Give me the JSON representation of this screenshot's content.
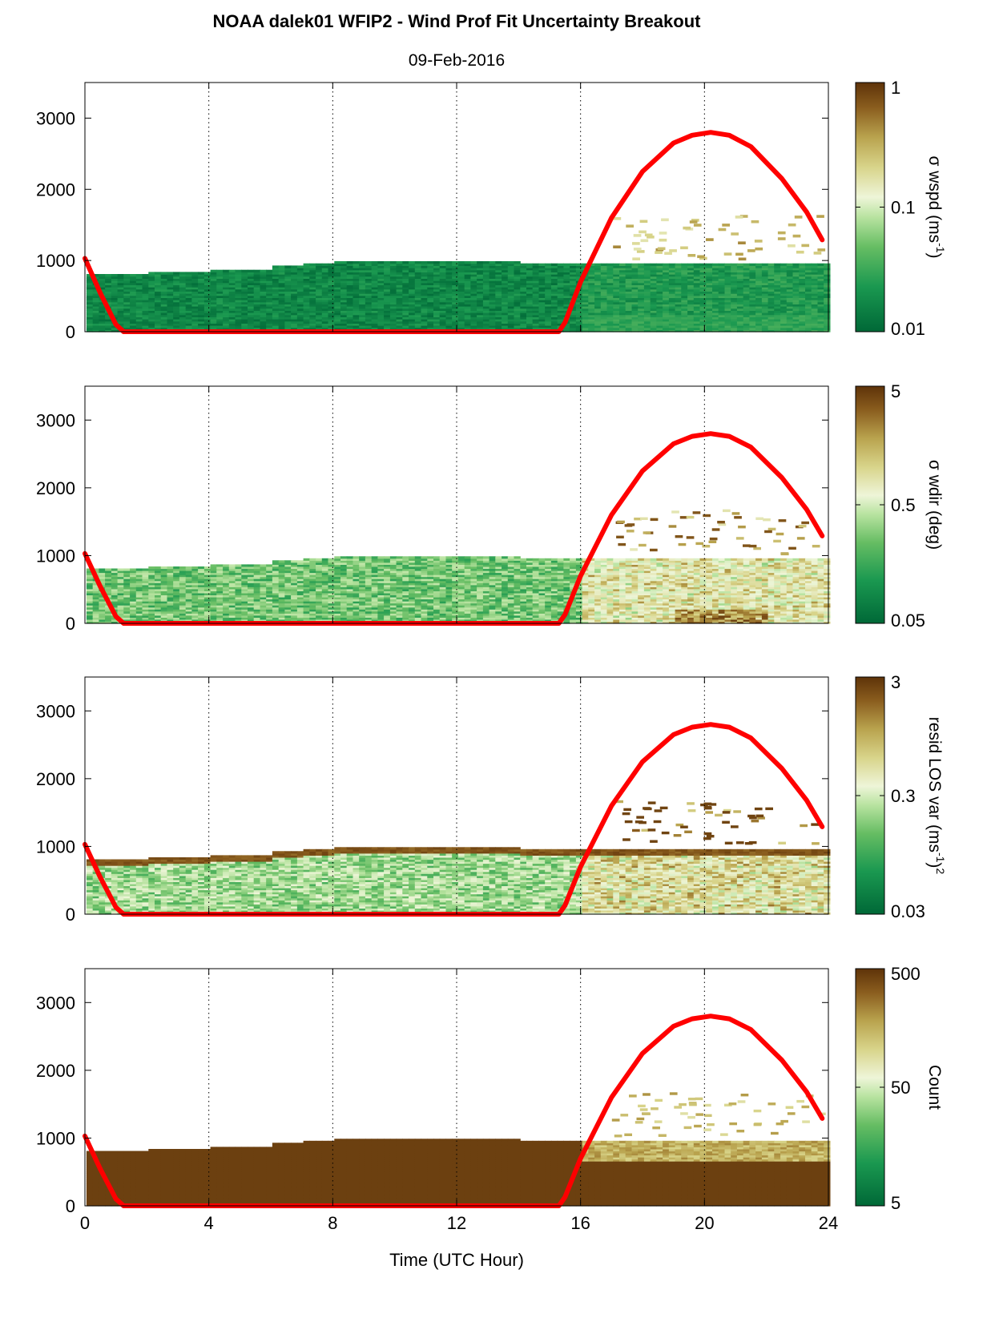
{
  "figure": {
    "title": "NOAA dalek01 WFIP2 - Wind Prof Fit Uncertainty Breakout",
    "subtitle": "09-Feb-2016"
  },
  "chart_data": [
    {
      "type": "heatmap",
      "x_ticks": [
        "0",
        "4",
        "8",
        "12",
        "16",
        "20",
        "24"
      ],
      "y_ticks": [
        "0",
        "1000",
        "2000",
        "3000"
      ],
      "xlim": [
        0,
        24
      ],
      "ylim": [
        0,
        3500
      ],
      "grid": "vertical dotted",
      "colorbar": {
        "label": "σ wspd (ms",
        "sup": "-1",
        "tail": ")",
        "tail_sup": "",
        "ticks": [
          "1",
          "0.1",
          "0.01"
        ],
        "scale": "log"
      }
    },
    {
      "type": "heatmap",
      "x_ticks": [
        "0",
        "4",
        "8",
        "12",
        "16",
        "20",
        "24"
      ],
      "y_ticks": [
        "0",
        "1000",
        "2000",
        "3000"
      ],
      "xlim": [
        0,
        24
      ],
      "ylim": [
        0,
        3500
      ],
      "grid": "vertical dotted",
      "colorbar": {
        "label": "σ wdir (deg)",
        "sup": "",
        "tail": "",
        "tail_sup": "",
        "ticks": [
          "5",
          "0.5",
          "0.05"
        ],
        "scale": "log"
      }
    },
    {
      "type": "heatmap",
      "x_ticks": [
        "0",
        "4",
        "8",
        "12",
        "16",
        "20",
        "24"
      ],
      "y_ticks": [
        "0",
        "1000",
        "2000",
        "3000"
      ],
      "xlim": [
        0,
        24
      ],
      "ylim": [
        0,
        3500
      ],
      "grid": "vertical dotted",
      "colorbar": {
        "label": "resid LOS var (ms",
        "sup": "-1",
        "tail": ")",
        "tail_sup": "2",
        "ticks": [
          "3",
          "0.3",
          "0.03"
        ],
        "scale": "log"
      }
    },
    {
      "type": "heatmap",
      "x_ticks": [
        "0",
        "4",
        "8",
        "12",
        "16",
        "20",
        "24"
      ],
      "y_ticks": [
        "0",
        "1000",
        "2000",
        "3000"
      ],
      "xlim": [
        0,
        24
      ],
      "ylim": [
        0,
        3500
      ],
      "grid": "vertical dotted",
      "xlabel": "Time (UTC Hour)",
      "colorbar": {
        "label": "Count",
        "sup": "",
        "tail": "",
        "tail_sup": "",
        "ticks": [
          "500",
          "50",
          "5"
        ],
        "scale": "log"
      }
    }
  ],
  "overlay_line": {
    "color": "#ff0000",
    "x": [
      0,
      0.5,
      1.0,
      1.25,
      15.3,
      15.5,
      16,
      17,
      18,
      19,
      19.6,
      20.2,
      20.8,
      21.5,
      22.5,
      23.3,
      23.8
    ],
    "y": [
      1030,
      540,
      100,
      0,
      0,
      130,
      700,
      1600,
      2250,
      2650,
      2760,
      2800,
      2760,
      2600,
      2150,
      1680,
      1290
    ]
  },
  "colors": {
    "cmap": [
      "#006837",
      "#1a9850",
      "#66bd63",
      "#b8e3a0",
      "#eef5d8",
      "#d8d48a",
      "#b9a34e",
      "#8a5d1e",
      "#5e3309"
    ]
  }
}
